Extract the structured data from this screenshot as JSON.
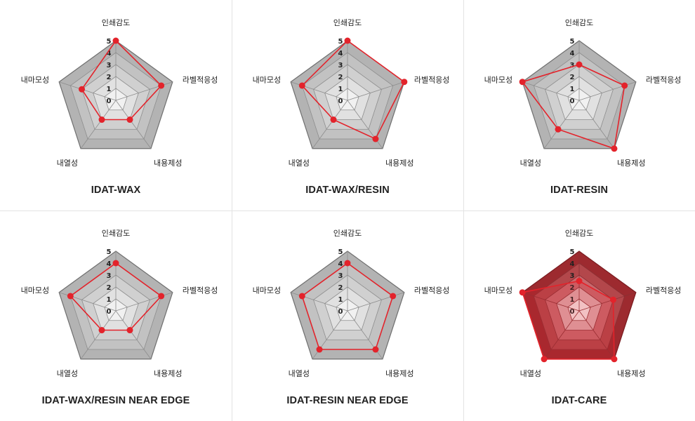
{
  "chart_data": [
    {
      "type": "radar",
      "title": "IDAT-WAX",
      "axes": [
        "인쇄감도",
        "라벨적응성",
        "내용제성",
        "내열성",
        "내마모성"
      ],
      "rlim": [
        0,
        5
      ],
      "ticks": [
        "0",
        "1",
        "2",
        "3",
        "4",
        "5"
      ],
      "values": [
        5,
        4,
        2,
        2,
        3
      ],
      "theme": "gray"
    },
    {
      "type": "radar",
      "title": "IDAT-WAX/RESIN",
      "axes": [
        "인쇄감도",
        "라벨적응성",
        "내용제성",
        "내열성",
        "내마모성"
      ],
      "rlim": [
        0,
        5
      ],
      "ticks": [
        "0",
        "1",
        "2",
        "3",
        "4",
        "5"
      ],
      "values": [
        5,
        5,
        4,
        2,
        4
      ],
      "theme": "gray"
    },
    {
      "type": "radar",
      "title": "IDAT-RESIN",
      "axes": [
        "인쇄감도",
        "라벨적응성",
        "내용제성",
        "내열성",
        "내마모성"
      ],
      "rlim": [
        0,
        5
      ],
      "ticks": [
        "0",
        "1",
        "2",
        "3",
        "4",
        "5"
      ],
      "values": [
        3,
        4,
        5,
        3,
        5
      ],
      "theme": "gray"
    },
    {
      "type": "radar",
      "title": "IDAT-WAX/RESIN NEAR EDGE",
      "axes": [
        "인쇄감도",
        "라벨적응성",
        "내용제성",
        "내열성",
        "내마모성"
      ],
      "rlim": [
        0,
        5
      ],
      "ticks": [
        "0",
        "1",
        "2",
        "3",
        "4",
        "5"
      ],
      "values": [
        4,
        4,
        2,
        2,
        4
      ],
      "theme": "gray"
    },
    {
      "type": "radar",
      "title": "IDAT-RESIN NEAR EDGE",
      "axes": [
        "인쇄감도",
        "라벨적응성",
        "내용제성",
        "내열성",
        "내마모성"
      ],
      "rlim": [
        0,
        5
      ],
      "ticks": [
        "0",
        "1",
        "2",
        "3",
        "4",
        "5"
      ],
      "values": [
        4,
        4,
        4,
        4,
        4
      ],
      "theme": "gray"
    },
    {
      "type": "radar",
      "title": "IDAT-CARE",
      "axes": [
        "인쇄감도",
        "라벨적응성",
        "내용제성",
        "내열성",
        "내마모성"
      ],
      "rlim": [
        0,
        5
      ],
      "ticks": [
        "0",
        "1",
        "2",
        "3",
        "4",
        "5"
      ],
      "values": [
        2.5,
        3,
        5,
        5,
        5
      ],
      "theme": "red"
    }
  ],
  "colors": {
    "series": "#e3232b",
    "gray_rings": [
      "#f1f1f1",
      "#e1e1e1",
      "#d0d0d0",
      "#c2c2c2",
      "#b3b3b3"
    ],
    "red_rings": [
      "#f6e4e4",
      "#dfa8aa",
      "#c8686d",
      "#b3474b",
      "#9d2a2f"
    ]
  }
}
